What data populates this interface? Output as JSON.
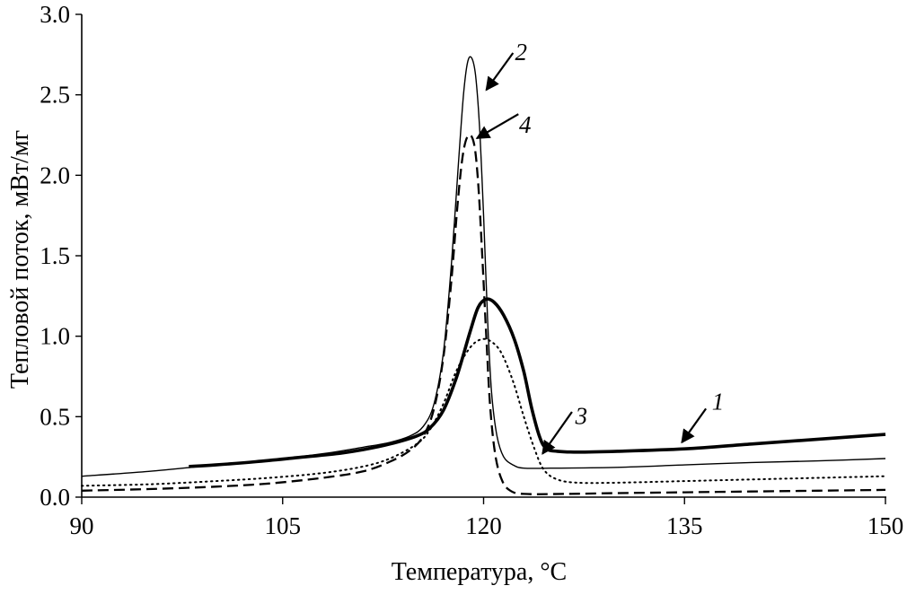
{
  "chart_data": {
    "type": "line",
    "xlabel": "Температура, °C",
    "ylabel": "Тепловой поток, мВт/мг",
    "xlim": [
      90,
      150
    ],
    "ylim": [
      0,
      3.0
    ],
    "x_ticks": [
      90,
      105,
      120,
      135,
      150
    ],
    "x_tick_labels": [
      "90",
      "105",
      "120",
      "135",
      "150"
    ],
    "y_ticks": [
      0,
      0.5,
      1.0,
      1.5,
      2.0,
      2.5,
      3.0
    ],
    "y_tick_labels": [
      "0.0",
      "0.5",
      "1.0",
      "1.5",
      "2.0",
      "2.5",
      "3.0"
    ],
    "grid": false,
    "series": [
      {
        "label": "1",
        "color": "#000000",
        "style": "thick-solid",
        "points": [
          [
            98,
            0.19
          ],
          [
            100,
            0.2
          ],
          [
            103,
            0.22
          ],
          [
            106,
            0.245
          ],
          [
            109,
            0.27
          ],
          [
            111,
            0.295
          ],
          [
            113,
            0.33
          ],
          [
            115,
            0.38
          ],
          [
            116,
            0.43
          ],
          [
            117,
            0.54
          ],
          [
            118,
            0.75
          ],
          [
            119,
            1.03
          ],
          [
            119.6,
            1.18
          ],
          [
            120.2,
            1.23
          ],
          [
            120.8,
            1.21
          ],
          [
            121.5,
            1.13
          ],
          [
            122.3,
            0.98
          ],
          [
            123,
            0.78
          ],
          [
            123.6,
            0.55
          ],
          [
            124.2,
            0.37
          ],
          [
            124.7,
            0.3
          ],
          [
            125.5,
            0.285
          ],
          [
            127,
            0.28
          ],
          [
            130,
            0.285
          ],
          [
            135,
            0.3
          ],
          [
            140,
            0.33
          ],
          [
            145,
            0.36
          ],
          [
            150,
            0.39
          ]
        ]
      },
      {
        "label": "2",
        "color": "#000000",
        "style": "thin-solid",
        "points": [
          [
            90,
            0.13
          ],
          [
            95,
            0.16
          ],
          [
            100,
            0.2
          ],
          [
            104,
            0.23
          ],
          [
            108,
            0.27
          ],
          [
            111,
            0.31
          ],
          [
            113,
            0.34
          ],
          [
            114.5,
            0.38
          ],
          [
            115.5,
            0.44
          ],
          [
            116.3,
            0.58
          ],
          [
            117,
            0.9
          ],
          [
            117.6,
            1.45
          ],
          [
            118.1,
            2.05
          ],
          [
            118.5,
            2.5
          ],
          [
            118.8,
            2.7
          ],
          [
            119.1,
            2.73
          ],
          [
            119.4,
            2.62
          ],
          [
            119.7,
            2.3
          ],
          [
            120,
            1.75
          ],
          [
            120.3,
            1.1
          ],
          [
            120.6,
            0.65
          ],
          [
            121,
            0.38
          ],
          [
            121.5,
            0.25
          ],
          [
            122.2,
            0.2
          ],
          [
            123,
            0.18
          ],
          [
            125,
            0.18
          ],
          [
            130,
            0.185
          ],
          [
            135,
            0.2
          ],
          [
            140,
            0.215
          ],
          [
            145,
            0.225
          ],
          [
            150,
            0.24
          ]
        ]
      },
      {
        "label": "3",
        "color": "#000000",
        "style": "dotted",
        "points": [
          [
            90,
            0.07
          ],
          [
            95,
            0.08
          ],
          [
            100,
            0.1
          ],
          [
            104,
            0.12
          ],
          [
            108,
            0.15
          ],
          [
            111,
            0.19
          ],
          [
            113,
            0.24
          ],
          [
            115,
            0.33
          ],
          [
            116,
            0.42
          ],
          [
            117,
            0.58
          ],
          [
            118,
            0.79
          ],
          [
            119,
            0.93
          ],
          [
            119.8,
            0.98
          ],
          [
            120.5,
            0.97
          ],
          [
            121.3,
            0.9
          ],
          [
            122.2,
            0.72
          ],
          [
            123,
            0.5
          ],
          [
            123.8,
            0.3
          ],
          [
            124.5,
            0.17
          ],
          [
            125.5,
            0.11
          ],
          [
            127,
            0.09
          ],
          [
            130,
            0.09
          ],
          [
            135,
            0.1
          ],
          [
            140,
            0.11
          ],
          [
            145,
            0.12
          ],
          [
            150,
            0.13
          ]
        ]
      },
      {
        "label": "4",
        "color": "#000000",
        "style": "dashed",
        "points": [
          [
            90,
            0.04
          ],
          [
            95,
            0.05
          ],
          [
            100,
            0.065
          ],
          [
            104,
            0.085
          ],
          [
            108,
            0.12
          ],
          [
            111,
            0.16
          ],
          [
            113,
            0.22
          ],
          [
            114.5,
            0.29
          ],
          [
            115.5,
            0.38
          ],
          [
            116.3,
            0.55
          ],
          [
            117,
            0.87
          ],
          [
            117.6,
            1.35
          ],
          [
            118.1,
            1.86
          ],
          [
            118.5,
            2.15
          ],
          [
            118.9,
            2.25
          ],
          [
            119.3,
            2.19
          ],
          [
            119.6,
            1.95
          ],
          [
            119.9,
            1.5
          ],
          [
            120.2,
            1.0
          ],
          [
            120.5,
            0.55
          ],
          [
            120.9,
            0.25
          ],
          [
            121.4,
            0.1
          ],
          [
            122,
            0.04
          ],
          [
            123,
            0.02
          ],
          [
            126,
            0.02
          ],
          [
            130,
            0.025
          ],
          [
            135,
            0.03
          ],
          [
            140,
            0.035
          ],
          [
            145,
            0.04
          ],
          [
            150,
            0.045
          ]
        ]
      }
    ],
    "annotations": [
      {
        "text": "1",
        "series": "1",
        "text_at": [
          137.5,
          0.6
        ],
        "arrow_from": [
          136.6,
          0.55
        ],
        "arrow_to": [
          134.8,
          0.34
        ]
      },
      {
        "text": "2",
        "series": "2",
        "text_at": [
          122.8,
          2.77
        ],
        "arrow_from": [
          122.2,
          2.76
        ],
        "arrow_to": [
          120.2,
          2.53
        ]
      },
      {
        "text": "3",
        "series": "3",
        "text_at": [
          127.3,
          0.51
        ],
        "arrow_from": [
          126.6,
          0.53
        ],
        "arrow_to": [
          124.4,
          0.27
        ]
      },
      {
        "text": "4",
        "series": "4",
        "text_at": [
          123.1,
          2.32
        ],
        "arrow_from": [
          122.6,
          2.38
        ],
        "arrow_to": [
          119.5,
          2.23
        ]
      }
    ]
  }
}
